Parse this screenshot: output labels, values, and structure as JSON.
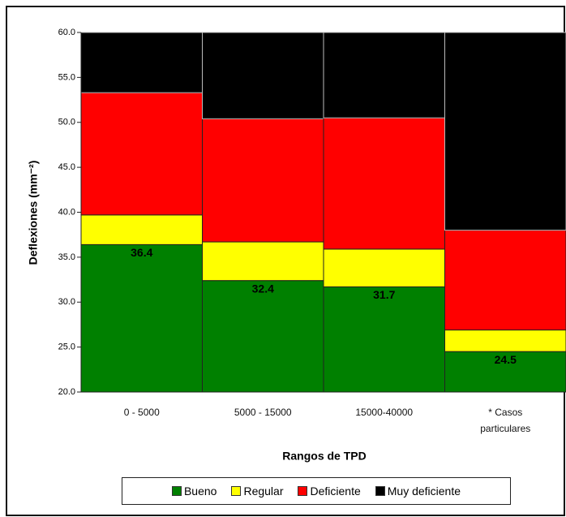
{
  "chart_data": {
    "type": "threshold-bar",
    "x_axis_label": "Rangos de TPD",
    "y_axis_label": "Deflexiones (mm⁻²)",
    "categories": [
      "0 - 5000",
      "5000 - 15000",
      "15000-40000",
      "* Casos particulares"
    ],
    "series": [
      {
        "name": "Bueno",
        "color": "#008000",
        "values": [
          36.4,
          32.4,
          31.7,
          24.5
        ]
      },
      {
        "name": "Regular",
        "color": "#ffff00",
        "values": [
          39.7,
          36.7,
          35.9,
          26.9
        ]
      },
      {
        "name": "Deficiente",
        "color": "#ff0000",
        "values": [
          53.3,
          50.4,
          50.5,
          38
        ]
      },
      {
        "name": "Muy deficiente",
        "color": "#000000"
      }
    ],
    "ylim": [
      20,
      60
    ],
    "yticks": [
      {
        "value": 20,
        "label": "20.0"
      },
      {
        "value": 25,
        "label": "25.0"
      },
      {
        "value": 30,
        "label": "30.0"
      },
      {
        "value": 35,
        "label": "35.0"
      },
      {
        "value": 40,
        "label": "40.0"
      },
      {
        "value": 45,
        "label": "45.0"
      },
      {
        "value": 50,
        "label": "50.0"
      },
      {
        "value": 55,
        "label": "55.0"
      },
      {
        "value": 60,
        "label": "60.0"
      }
    ],
    "legend": "bottom"
  }
}
